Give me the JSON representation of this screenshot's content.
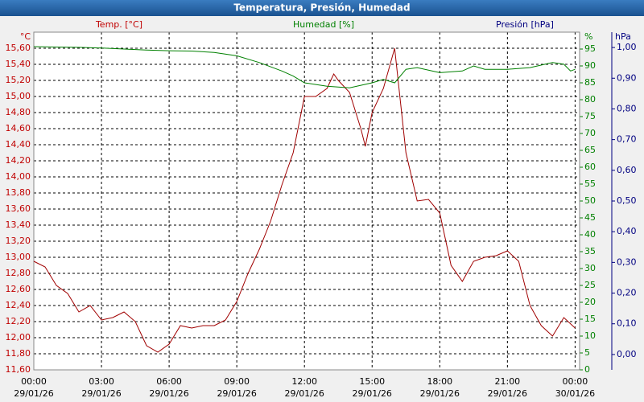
{
  "chart_data": {
    "type": "line",
    "title": "Temperatura, Presión, Humedad",
    "y_label": "Temp. [°C]",
    "y_unit": "°C",
    "y2_label": "Humedad [%]",
    "y2_unit": "%",
    "y3_label": "Presión [hPa]",
    "y3_unit": "hPa",
    "xlim": [
      0,
      24.2
    ],
    "xticks": [
      {
        "value": 0,
        "label": "00:00",
        "date": "29/01/26"
      },
      {
        "value": 3,
        "label": "03:00",
        "date": "29/01/26"
      },
      {
        "value": 6,
        "label": "06:00",
        "date": "29/01/26"
      },
      {
        "value": 9,
        "label": "09:00",
        "date": "29/01/26"
      },
      {
        "value": 12,
        "label": "12:00",
        "date": "29/01/26"
      },
      {
        "value": 15,
        "label": "15:00",
        "date": "29/01/26"
      },
      {
        "value": 18,
        "label": "18:00",
        "date": "29/01/26"
      },
      {
        "value": 21,
        "label": "21:00",
        "date": "29/01/26"
      },
      {
        "value": 24,
        "label": "00:00",
        "date": "30/01/26"
      }
    ],
    "ylim": [
      11.6,
      15.8
    ],
    "yticks": [
      {
        "value": 11.6,
        "label": "11,60"
      },
      {
        "value": 11.8,
        "label": "11,80"
      },
      {
        "value": 12.0,
        "label": "12,00"
      },
      {
        "value": 12.2,
        "label": "12,20"
      },
      {
        "value": 12.4,
        "label": "12,40"
      },
      {
        "value": 12.6,
        "label": "12,60"
      },
      {
        "value": 12.8,
        "label": "12,80"
      },
      {
        "value": 13.0,
        "label": "13,00"
      },
      {
        "value": 13.2,
        "label": "13,20"
      },
      {
        "value": 13.4,
        "label": "13,40"
      },
      {
        "value": 13.6,
        "label": "13,60"
      },
      {
        "value": 13.8,
        "label": "13,80"
      },
      {
        "value": 14.0,
        "label": "14,00"
      },
      {
        "value": 14.2,
        "label": "14,20"
      },
      {
        "value": 14.4,
        "label": "14,40"
      },
      {
        "value": 14.6,
        "label": "14,60"
      },
      {
        "value": 14.8,
        "label": "14,80"
      },
      {
        "value": 15.0,
        "label": "15,00"
      },
      {
        "value": 15.2,
        "label": "15,20"
      },
      {
        "value": 15.4,
        "label": "15,40"
      },
      {
        "value": 15.6,
        "label": "15,60"
      }
    ],
    "y2lim": [
      0,
      100
    ],
    "y2ticks": [
      0,
      5,
      10,
      15,
      20,
      25,
      30,
      35,
      40,
      45,
      50,
      55,
      60,
      65,
      70,
      75,
      80,
      85,
      90,
      95
    ],
    "y3lim": [
      -0.05,
      1.05
    ],
    "y3ticks": [
      {
        "value": 0,
        "label": "0,00"
      },
      {
        "value": 0.1,
        "label": "0,10"
      },
      {
        "value": 0.2,
        "label": "0,20"
      },
      {
        "value": 0.3,
        "label": "0,30"
      },
      {
        "value": 0.4,
        "label": "0,40"
      },
      {
        "value": 0.5,
        "label": "0,50"
      },
      {
        "value": 0.6,
        "label": "0,60"
      },
      {
        "value": 0.7,
        "label": "0,70"
      },
      {
        "value": 0.8,
        "label": "0,80"
      },
      {
        "value": 0.9,
        "label": "0,90"
      },
      {
        "value": 1.0,
        "label": "1,00"
      }
    ],
    "grid": true,
    "series": [
      {
        "name": "Temp. [°C]",
        "color": "#a00000",
        "axis": "y",
        "x": [
          0,
          0.5,
          1,
          1.5,
          2,
          2.5,
          3,
          3.5,
          4,
          4.5,
          5,
          5.5,
          6,
          6.5,
          7,
          7.5,
          8,
          8.5,
          9,
          9.5,
          10,
          10.5,
          11,
          11.5,
          12,
          12.5,
          13,
          13.3,
          13.5,
          14,
          14.5,
          14.7,
          15,
          15.5,
          16,
          16.5,
          17,
          17.5,
          18,
          18.5,
          19,
          19.5,
          20,
          20.5,
          21,
          21.5,
          22,
          22.5,
          23,
          23.5,
          24
        ],
        "values": [
          12.95,
          12.88,
          12.65,
          12.55,
          12.32,
          12.4,
          12.22,
          12.25,
          12.32,
          12.2,
          11.9,
          11.82,
          11.92,
          12.15,
          12.12,
          12.15,
          12.15,
          12.22,
          12.45,
          12.8,
          13.1,
          13.45,
          13.9,
          14.3,
          15.0,
          15.0,
          15.1,
          15.28,
          15.2,
          15.05,
          14.6,
          14.38,
          14.8,
          15.1,
          15.6,
          14.3,
          13.7,
          13.72,
          13.55,
          12.9,
          12.7,
          12.95,
          13.0,
          13.02,
          13.08,
          12.95,
          12.4,
          12.15,
          12.02,
          12.25,
          12.12
        ]
      },
      {
        "name": "Humedad [%]",
        "color": "#008000",
        "axis": "y2",
        "x": [
          0,
          1,
          2,
          3,
          4,
          5,
          6,
          7,
          8,
          9,
          10,
          11,
          11.5,
          12,
          13,
          14,
          15,
          15.5,
          16,
          16.5,
          17,
          18,
          19,
          19.5,
          20,
          21,
          22,
          23,
          23.5,
          23.8,
          24
        ],
        "values": [
          95.7,
          95.6,
          95.5,
          95.3,
          95,
          94.7,
          94.5,
          94.4,
          94,
          93,
          91,
          88.5,
          87,
          85,
          84,
          83.5,
          85,
          86,
          85,
          89,
          89.5,
          88,
          88.5,
          90,
          89,
          89,
          89.5,
          91,
          90.5,
          88.5,
          89
        ]
      }
    ]
  }
}
